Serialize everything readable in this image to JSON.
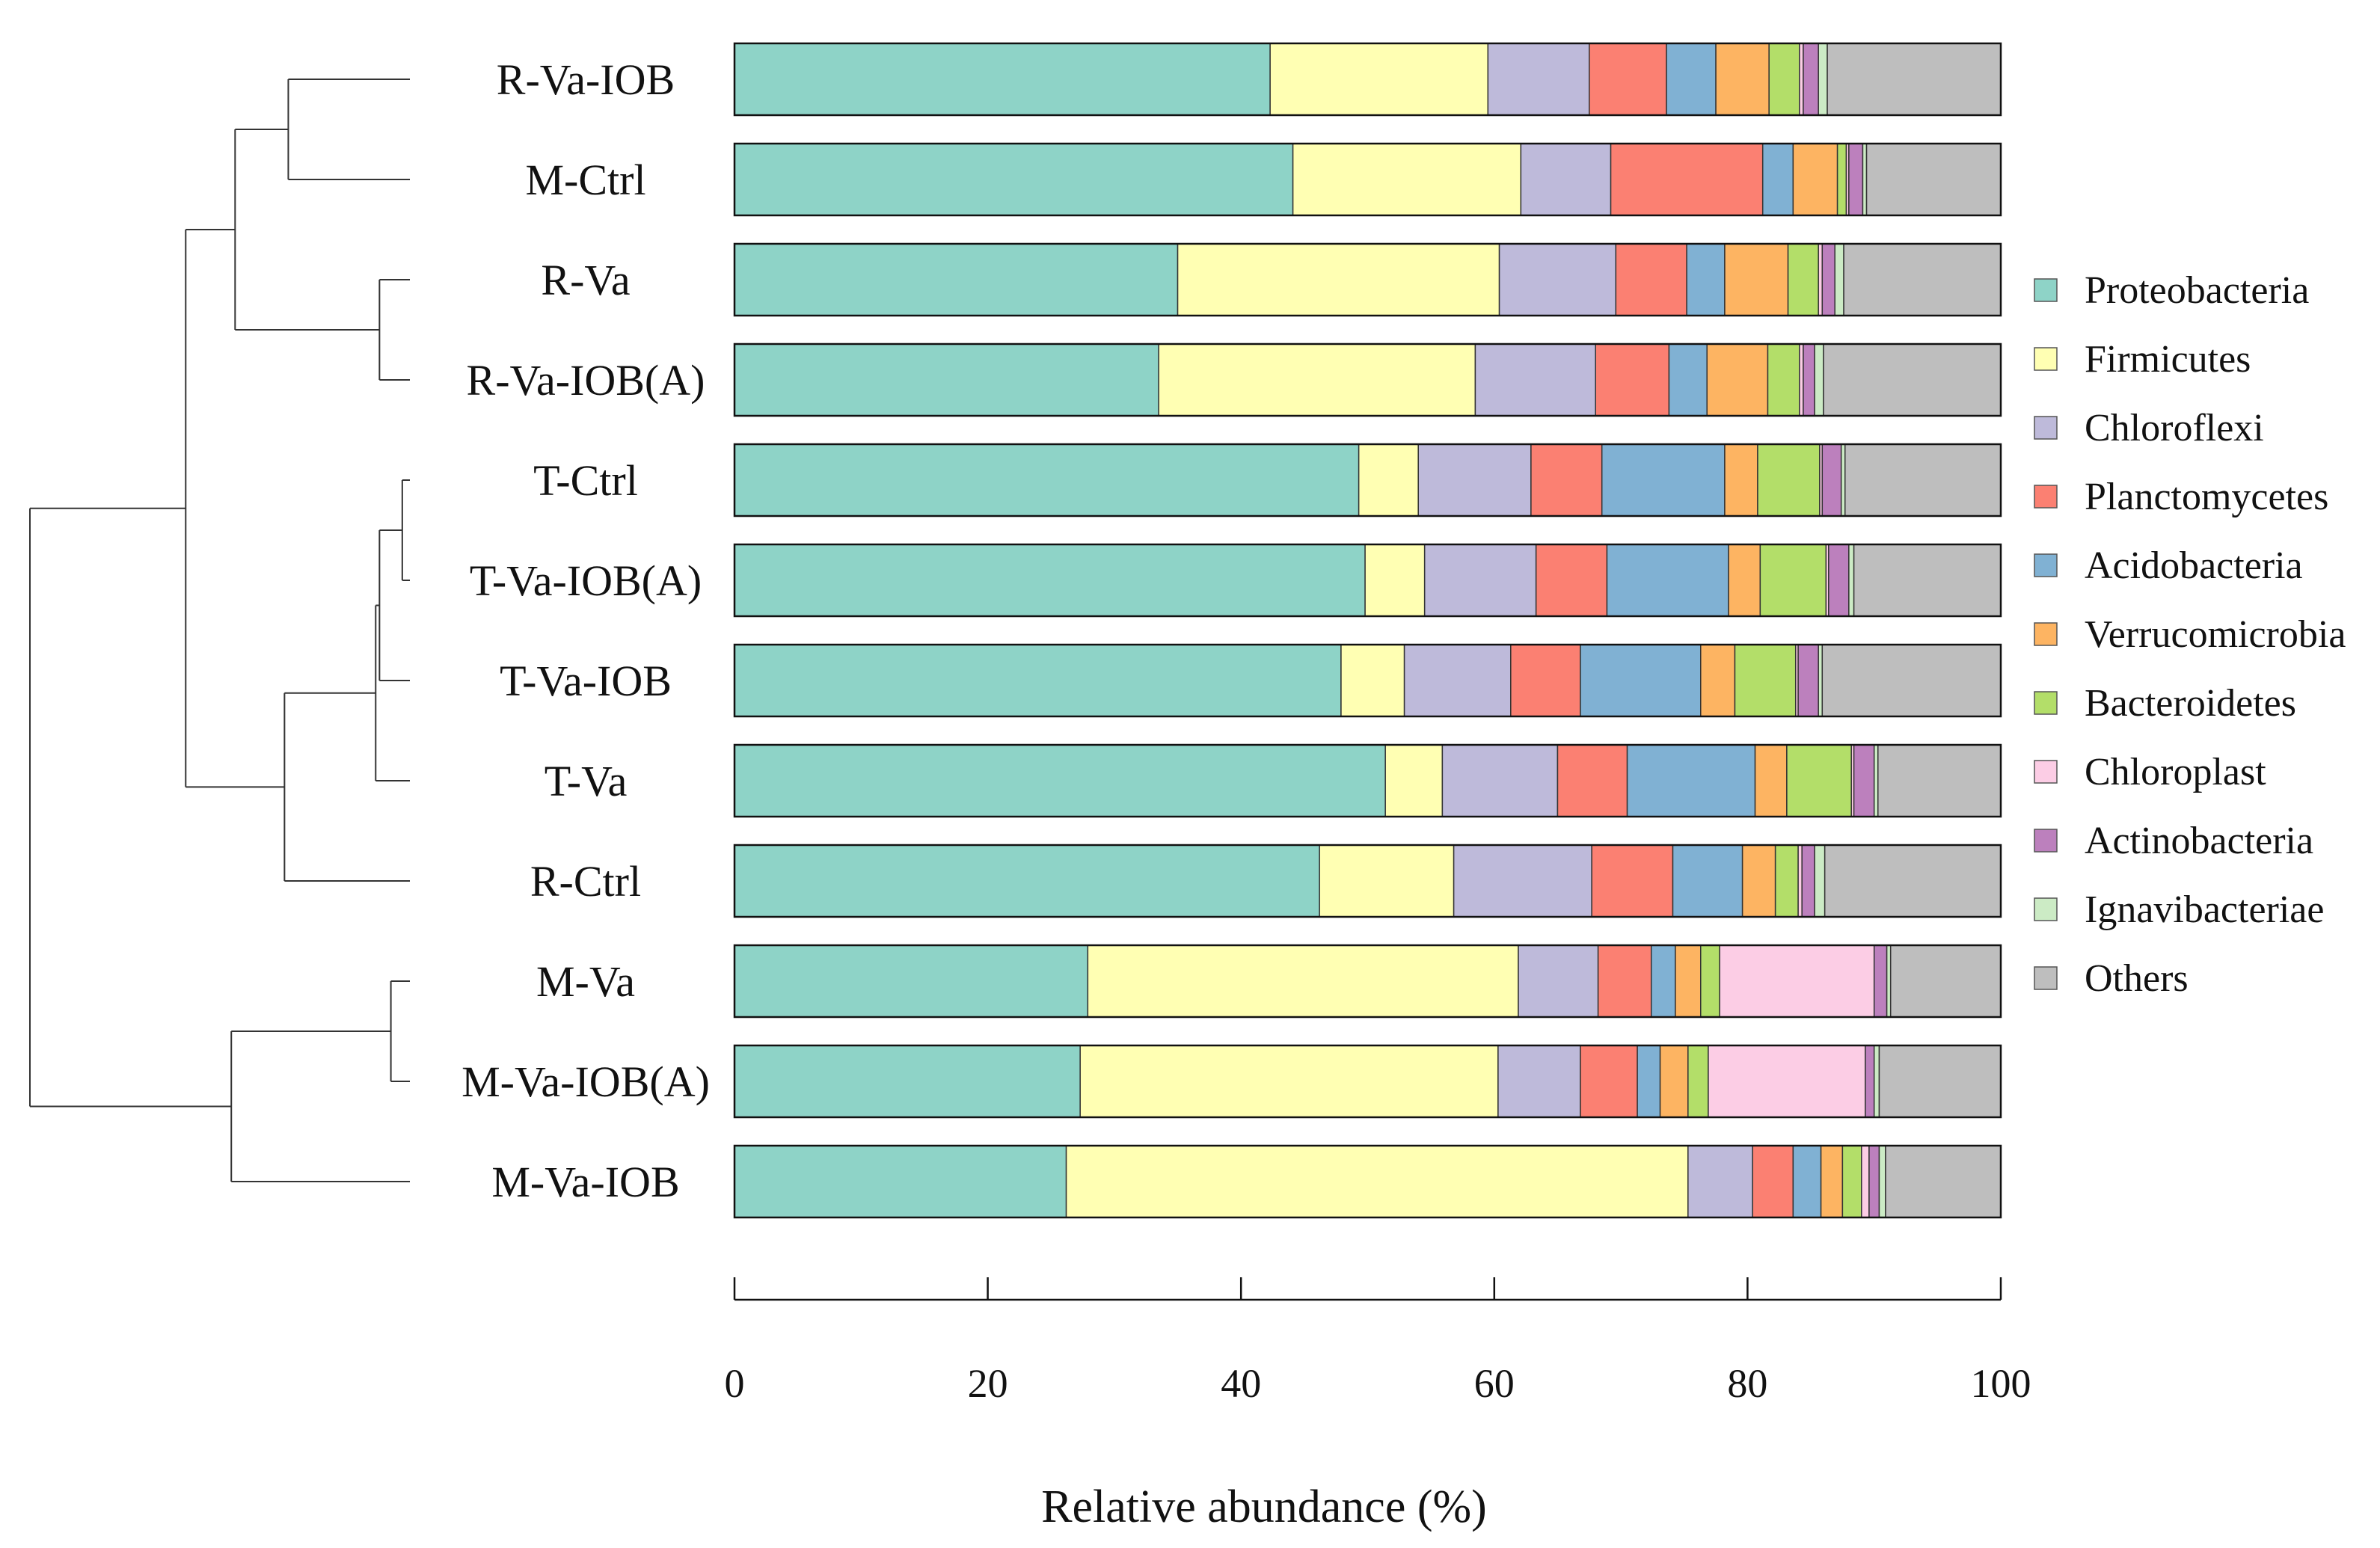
{
  "chart_data": {
    "type": "bar",
    "orientation": "horizontal",
    "stacked": true,
    "xlabel": "Relative abundance (%)",
    "xlim": [
      0,
      100
    ],
    "xticks": [
      0,
      20,
      40,
      60,
      80,
      100
    ],
    "legend_position": "right",
    "grid": false,
    "categories": [
      "R-Va-IOB",
      "M-Ctrl",
      "R-Va",
      "R-Va-IOB(A)",
      "T-Ctrl",
      "T-Va-IOB(A)",
      "T-Va-IOB",
      "T-Va",
      "R-Ctrl",
      "M-Va",
      "M-Va-IOB(A)",
      "M-Va-IOB"
    ],
    "series": [
      {
        "name": "Proteobacteria",
        "color": "#8ED3C7",
        "values": [
          42.3,
          44.1,
          35.0,
          33.5,
          49.3,
          49.8,
          47.9,
          51.4,
          46.2,
          27.9,
          27.3,
          26.2
        ]
      },
      {
        "name": "Firmicutes",
        "color": "#FFFFB3",
        "values": [
          17.2,
          18.0,
          25.4,
          25.0,
          4.7,
          4.7,
          5.0,
          4.5,
          10.6,
          34.0,
          33.0,
          49.1
        ]
      },
      {
        "name": "Chloroflexi",
        "color": "#BEBADA",
        "values": [
          8.0,
          7.1,
          9.2,
          9.5,
          8.9,
          8.8,
          8.4,
          9.1,
          10.9,
          6.3,
          6.5,
          5.1
        ]
      },
      {
        "name": "Planctomycetes",
        "color": "#FB8072",
        "values": [
          6.1,
          12.0,
          5.6,
          5.8,
          5.6,
          5.6,
          5.5,
          5.5,
          6.4,
          4.2,
          4.5,
          3.2
        ]
      },
      {
        "name": "Acidobacteria",
        "color": "#80B1D3",
        "values": [
          3.9,
          2.4,
          3.0,
          3.0,
          9.7,
          9.6,
          9.5,
          10.1,
          5.5,
          1.9,
          1.8,
          2.2
        ]
      },
      {
        "name": "Verrucomicrobia",
        "color": "#FDB462",
        "values": [
          4.2,
          3.5,
          5.0,
          4.8,
          2.6,
          2.5,
          2.7,
          2.5,
          2.6,
          2.0,
          2.2,
          1.7
        ]
      },
      {
        "name": "Bacteroidetes",
        "color": "#B3DE69",
        "values": [
          2.4,
          0.7,
          2.4,
          2.5,
          4.9,
          5.2,
          4.8,
          5.1,
          1.8,
          1.5,
          1.6,
          1.5
        ]
      },
      {
        "name": "Chloroplast",
        "color": "#FCCDE5",
        "values": [
          0.3,
          0.2,
          0.3,
          0.3,
          0.2,
          0.2,
          0.2,
          0.2,
          0.3,
          12.2,
          12.4,
          0.6
        ]
      },
      {
        "name": "Actinobacteria",
        "color": "#BC80BD",
        "values": [
          1.2,
          1.1,
          1.0,
          0.9,
          1.5,
          1.6,
          1.6,
          1.6,
          1.0,
          1.0,
          0.7,
          0.8
        ]
      },
      {
        "name": "Ignavibacteriae",
        "color": "#CCEBC5",
        "values": [
          0.7,
          0.3,
          0.7,
          0.7,
          0.3,
          0.4,
          0.3,
          0.3,
          0.8,
          0.3,
          0.4,
          0.5
        ]
      },
      {
        "name": "Others",
        "color": "#BEBEBE",
        "values": [
          13.7,
          10.6,
          12.4,
          14.0,
          12.3,
          11.6,
          14.1,
          9.7,
          13.9,
          8.7,
          9.6,
          9.1
        ]
      }
    ],
    "dendrogram": {
      "note": "UPGMA-style clustering tree drawn left of bars; leaves in category order",
      "merges": [
        {
          "a": "R-Va-IOB",
          "b": "M-Ctrl",
          "height": 0.32
        },
        {
          "a": "R-Va",
          "b": "R-Va-IOB(A)",
          "height": 0.08
        },
        {
          "a": [
            "R-Va-IOB",
            "M-Ctrl"
          ],
          "b": [
            "R-Va",
            "R-Va-IOB(A)"
          ],
          "height": 0.46
        },
        {
          "a": "T-Ctrl",
          "b": "T-Va-IOB(A)",
          "height": 0.02
        },
        {
          "a": [
            "T-Ctrl",
            "T-Va-IOB(A)"
          ],
          "b": "T-Va-IOB",
          "height": 0.08
        },
        {
          "a": [
            "T-Ctrl",
            "T-Va-IOB(A)",
            "T-Va-IOB"
          ],
          "b": "T-Va",
          "height": 0.09
        },
        {
          "a": [
            "T-Ctrl",
            "T-Va-IOB(A)",
            "T-Va-IOB",
            "T-Va"
          ],
          "b": "R-Ctrl",
          "height": 0.33
        },
        {
          "a": [
            "R-Va-IOB",
            "M-Ctrl",
            "R-Va",
            "R-Va-IOB(A)"
          ],
          "b": [
            "T-Ctrl",
            "T-Va-IOB(A)",
            "T-Va-IOB",
            "T-Va",
            "R-Ctrl"
          ],
          "height": 0.59
        },
        {
          "a": "M-Va",
          "b": "M-Va-IOB(A)",
          "height": 0.05
        },
        {
          "a": [
            "M-Va",
            "M-Va-IOB(A)"
          ],
          "b": "M-Va-IOB",
          "height": 0.47
        },
        {
          "a": "all-upper",
          "b": "all-lower",
          "height": 1.0
        }
      ]
    }
  }
}
